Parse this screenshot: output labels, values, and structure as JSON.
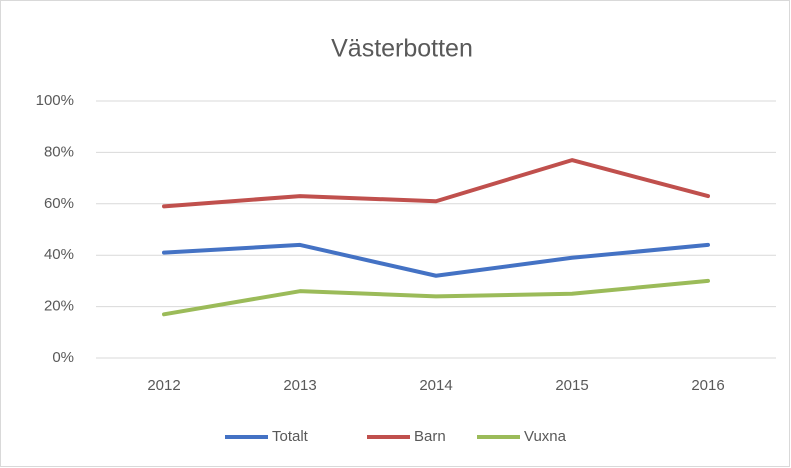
{
  "chart_data": {
    "type": "line",
    "title": "Västerbotten",
    "categories": [
      "2012",
      "2013",
      "2014",
      "2015",
      "2016"
    ],
    "series": [
      {
        "name": "Totalt",
        "color": "#4472c4",
        "values": [
          41,
          44,
          32,
          39,
          44
        ]
      },
      {
        "name": "Barn",
        "color": "#c0504d",
        "values": [
          59,
          63,
          61,
          77,
          63
        ]
      },
      {
        "name": "Vuxna",
        "color": "#9bbb59",
        "values": [
          17,
          26,
          24,
          25,
          30
        ]
      }
    ],
    "ylim": [
      0,
      100
    ],
    "yticks": [
      {
        "value": 0,
        "label": "0%"
      },
      {
        "value": 20,
        "label": "20%"
      },
      {
        "value": 40,
        "label": "40%"
      },
      {
        "value": 60,
        "label": "60%"
      },
      {
        "value": 80,
        "label": "80%"
      },
      {
        "value": 100,
        "label": "100%"
      }
    ],
    "grid": true,
    "legend": "bottom"
  }
}
